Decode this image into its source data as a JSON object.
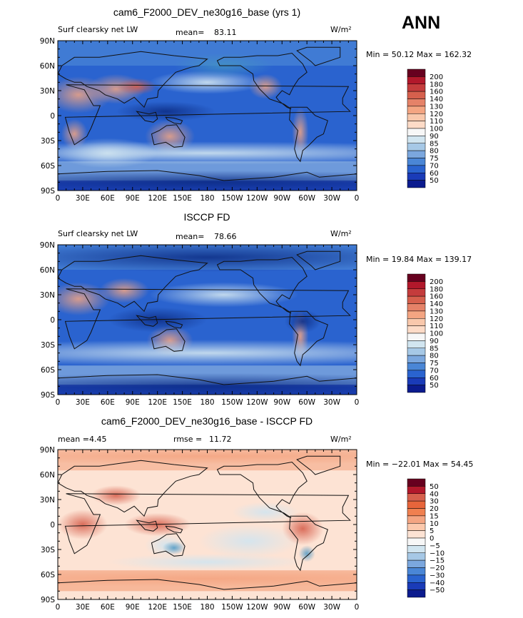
{
  "season": "ANN",
  "colors": {
    "ocean_blue": "#2c6bd6",
    "warm_land": "#f4a582",
    "pale": "#d1e5f0",
    "deep_blue": "#0c2c84",
    "coast": "#111111"
  },
  "chart_data": [
    {
      "type": "heatmap",
      "title": "cam6_F2000_DEV_ne30g16_base (yrs 1)",
      "left_label": "Surf clearsky net LW",
      "mean_label": "mean=",
      "mean_value": "83.11",
      "units": "W/m²",
      "minmax": "Min =  50.12 Max = 162.32",
      "min": 50.12,
      "max": 162.32,
      "mean": 83.11,
      "colorbar_levels": [
        "200",
        "180",
        "160",
        "140",
        "130",
        "120",
        "110",
        "100",
        "90",
        "85",
        "80",
        "75",
        "70",
        "60",
        "50"
      ],
      "colorbar_colors": [
        "#67001f",
        "#b2182b",
        "#c43c3c",
        "#d6604d",
        "#e58268",
        "#f4a582",
        "#f9c8ac",
        "#fddbc7",
        "#f7f7f7",
        "#d1e5f0",
        "#a6c8e6",
        "#7ba7de",
        "#4a86d6",
        "#2a63cf",
        "#1a3bb8",
        "#0b1b8e"
      ],
      "regions": [
        {
          "kind": "warm",
          "lon": 25,
          "lat": 25,
          "w": 40,
          "h": 22
        },
        {
          "kind": "warm",
          "lon": 70,
          "lat": 32,
          "w": 35,
          "h": 18
        },
        {
          "kind": "hot",
          "lon": 95,
          "lat": 35,
          "w": 24,
          "h": 10
        },
        {
          "kind": "warm",
          "lon": 135,
          "lat": -25,
          "w": 30,
          "h": 20
        },
        {
          "kind": "warm",
          "lon": 250,
          "lat": 35,
          "w": 20,
          "h": 15
        },
        {
          "kind": "warm",
          "lon": 292,
          "lat": -20,
          "w": 10,
          "h": 30
        },
        {
          "kind": "warm",
          "lon": 20,
          "lat": -22,
          "w": 16,
          "h": 18
        },
        {
          "kind": "pale",
          "lon": 180,
          "lat": -45,
          "w": 360,
          "h": 14
        },
        {
          "kind": "pale",
          "lon": 60,
          "lat": -45,
          "w": 60,
          "h": 18
        },
        {
          "kind": "pale",
          "lon": 180,
          "lat": 40,
          "w": 70,
          "h": 14
        },
        {
          "kind": "deep",
          "lon": 130,
          "lat": 5,
          "w": 60,
          "h": 12
        },
        {
          "kind": "deep",
          "lon": 180,
          "lat": -80,
          "w": 360,
          "h": 14
        },
        {
          "kind": "blue",
          "lon": 200,
          "lat": 60,
          "w": 60,
          "h": 15
        }
      ]
    },
    {
      "type": "heatmap",
      "title": "ISCCP FD",
      "left_label": "Surf clearsky net LW",
      "mean_label": "mean=",
      "mean_value": "78.66",
      "units": "W/m²",
      "minmax": "Min =  19.84 Max = 139.17",
      "min": 19.84,
      "max": 139.17,
      "mean": 78.66,
      "colorbar_levels": [
        "200",
        "180",
        "160",
        "140",
        "130",
        "120",
        "110",
        "100",
        "90",
        "85",
        "80",
        "75",
        "70",
        "60",
        "50"
      ],
      "colorbar_colors": [
        "#67001f",
        "#b2182b",
        "#c43c3c",
        "#d6604d",
        "#e58268",
        "#f4a582",
        "#f9c8ac",
        "#fddbc7",
        "#f7f7f7",
        "#d1e5f0",
        "#a6c8e6",
        "#7ba7de",
        "#4a86d6",
        "#2a63cf",
        "#1a3bb8",
        "#0b1b8e"
      ],
      "regions": [
        {
          "kind": "warm",
          "lon": 25,
          "lat": 25,
          "w": 38,
          "h": 20
        },
        {
          "kind": "warm",
          "lon": 80,
          "lat": 35,
          "w": 30,
          "h": 15
        },
        {
          "kind": "warm",
          "lon": 135,
          "lat": -25,
          "w": 28,
          "h": 18
        },
        {
          "kind": "warm",
          "lon": 292,
          "lat": -20,
          "w": 10,
          "h": 30
        },
        {
          "kind": "pale",
          "lon": 180,
          "lat": -40,
          "w": 360,
          "h": 16
        },
        {
          "kind": "pale",
          "lon": 200,
          "lat": 30,
          "w": 90,
          "h": 15
        },
        {
          "kind": "deep",
          "lon": 120,
          "lat": 0,
          "w": 60,
          "h": 15
        },
        {
          "kind": "deep",
          "lon": 295,
          "lat": -2,
          "w": 22,
          "h": 14
        },
        {
          "kind": "deep",
          "lon": 180,
          "lat": -80,
          "w": 360,
          "h": 16
        },
        {
          "kind": "deep",
          "lon": 180,
          "lat": 75,
          "w": 260,
          "h": 18
        }
      ]
    },
    {
      "type": "heatmap",
      "title": "cam6_F2000_DEV_ne30g16_base - ISCCP FD",
      "mean_label": "mean =",
      "mean_value": "4.45",
      "rmse_label": "rmse =",
      "rmse_value": "11.72",
      "units": "W/m²",
      "minmax": "Min = −22.01 Max =  54.45",
      "min": -22.01,
      "max": 54.45,
      "mean": 4.45,
      "rmse": 11.72,
      "colorbar_levels": [
        "50",
        "40",
        "30",
        "20",
        "15",
        "10",
        "5",
        "0",
        "−5",
        "−10",
        "−15",
        "−20",
        "−30",
        "−40",
        "−50"
      ],
      "colorbar_colors": [
        "#67001f",
        "#b2182b",
        "#d6604d",
        "#e7653b",
        "#f08050",
        "#f4a582",
        "#fcc9ad",
        "#fde3d4",
        "#f7f7f7",
        "#d1e5f0",
        "#a6c8e6",
        "#7ba7de",
        "#4a86d6",
        "#2a63cf",
        "#1a3bb8",
        "#0b1b8e"
      ],
      "regions": [
        {
          "kind": "hot",
          "lon": 120,
          "lat": 0,
          "w": 40,
          "h": 14
        },
        {
          "kind": "hot",
          "lon": 295,
          "lat": -5,
          "w": 25,
          "h": 20
        },
        {
          "kind": "hot",
          "lon": 30,
          "lat": 0,
          "w": 30,
          "h": 18
        },
        {
          "kind": "hot",
          "lon": 70,
          "lat": 35,
          "w": 30,
          "h": 12
        },
        {
          "kind": "warm",
          "lon": 180,
          "lat": -65,
          "w": 360,
          "h": 10
        },
        {
          "kind": "warm",
          "lon": 180,
          "lat": 82,
          "w": 360,
          "h": 10
        },
        {
          "kind": "pale",
          "lon": 130,
          "lat": -25,
          "w": 25,
          "h": 14
        },
        {
          "kind": "pale",
          "lon": 230,
          "lat": -20,
          "w": 60,
          "h": 20
        },
        {
          "kind": "blue",
          "lon": 140,
          "lat": -28,
          "w": 14,
          "h": 8
        },
        {
          "kind": "blue",
          "lon": 300,
          "lat": -35,
          "w": 10,
          "h": 10
        },
        {
          "kind": "pale",
          "lon": 250,
          "lat": 15,
          "w": 40,
          "h": 12
        },
        {
          "kind": "pale",
          "lon": 180,
          "lat": -45,
          "w": 120,
          "h": 10
        }
      ]
    }
  ],
  "axis": {
    "lon_labels": [
      "0",
      "30E",
      "60E",
      "90E",
      "120E",
      "150E",
      "180",
      "150W",
      "120W",
      "90W",
      "60W",
      "30W",
      "0"
    ],
    "lat_labels": [
      "90N",
      "60N",
      "30N",
      "0",
      "30S",
      "60S",
      "90S"
    ]
  }
}
